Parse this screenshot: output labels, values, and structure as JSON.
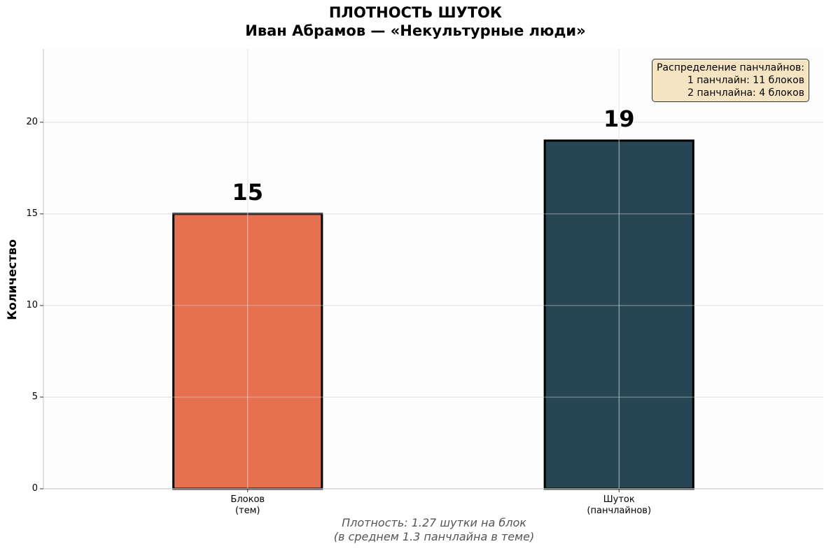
{
  "chart_data": {
    "type": "bar",
    "title": "ПЛОТНОСТЬ ШУТОК",
    "subtitle": "Иван Абрамов — «Некультурные люди»",
    "categories": [
      "Блоков\n(тем)",
      "Шуток\n(панчлайнов)"
    ],
    "values": [
      15,
      19
    ],
    "data_labels": [
      "15",
      "19"
    ],
    "colors": [
      "#e67050",
      "#264653"
    ],
    "ylabel": "Количество",
    "xlabel": "",
    "ylim": [
      0,
      24
    ],
    "yticks": [
      0,
      5,
      10,
      15,
      20
    ],
    "grid": true,
    "annotation": {
      "lines": [
        "Распределение панчлайнов:",
        "1 панчлайн: 11 блоков",
        "2 панчлайна: 4 блоков"
      ],
      "placement": "top-right"
    },
    "footnote": [
      "Плотность: 1.27 шутки на блок",
      "(в среднем 1.3 панчлайна в теме)"
    ]
  }
}
